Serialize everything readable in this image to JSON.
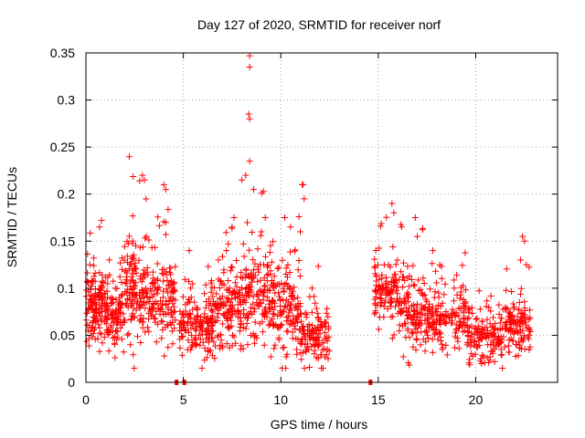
{
  "chart_data": {
    "type": "scatter",
    "title": "Day 127 of 2020, SRMTID for receiver norf",
    "xlabel": "GPS time / hours",
    "ylabel": "SRMTID / TECUs",
    "xlim": [
      0,
      24.2
    ],
    "ylim": [
      0,
      0.35
    ],
    "x_ticks": [
      0,
      5,
      10,
      15,
      20
    ],
    "x_tick_labels": [
      "0",
      "5",
      "10",
      "15",
      "20"
    ],
    "y_ticks": [
      0,
      0.05,
      0.1,
      0.15,
      0.2,
      0.25,
      0.3,
      0.35
    ],
    "y_tick_labels": [
      "0",
      "0.05",
      "0.1",
      "0.15",
      "0.2",
      "0.25",
      "0.3",
      "0.35"
    ],
    "grid": true,
    "marker": "+",
    "color": "#ff0000",
    "series": [
      {
        "name": "SRMTID",
        "clusters": [
          {
            "x_range": [
              0.0,
              1.0
            ],
            "center": 0.08,
            "spread": 0.018,
            "count": 130
          },
          {
            "x_range": [
              1.0,
              2.0
            ],
            "center": 0.07,
            "spread": 0.018,
            "count": 110
          },
          {
            "x_range": [
              2.0,
              3.2
            ],
            "center": 0.095,
            "spread": 0.025,
            "count": 140
          },
          {
            "x_range": [
              3.2,
              4.6
            ],
            "center": 0.085,
            "spread": 0.02,
            "count": 130
          },
          {
            "x_range": [
              4.8,
              6.5
            ],
            "center": 0.06,
            "spread": 0.015,
            "count": 150
          },
          {
            "x_range": [
              6.5,
              8.0
            ],
            "center": 0.075,
            "spread": 0.02,
            "count": 140
          },
          {
            "x_range": [
              8.0,
              9.6
            ],
            "center": 0.09,
            "spread": 0.025,
            "count": 150
          },
          {
            "x_range": [
              9.6,
              11.0
            ],
            "center": 0.07,
            "spread": 0.02,
            "count": 130
          },
          {
            "x_range": [
              11.0,
              12.5
            ],
            "center": 0.05,
            "spread": 0.015,
            "count": 120
          },
          {
            "x_range": [
              14.8,
              16.0
            ],
            "center": 0.095,
            "spread": 0.018,
            "count": 110
          },
          {
            "x_range": [
              16.0,
              17.5
            ],
            "center": 0.075,
            "spread": 0.018,
            "count": 130
          },
          {
            "x_range": [
              17.5,
              19.5
            ],
            "center": 0.065,
            "spread": 0.015,
            "count": 150
          },
          {
            "x_range": [
              19.5,
              21.5
            ],
            "center": 0.045,
            "spread": 0.013,
            "count": 150
          },
          {
            "x_range": [
              21.5,
              22.8
            ],
            "center": 0.06,
            "spread": 0.015,
            "count": 120
          }
        ],
        "spikes": [
          [
            0.2,
            0.125
          ],
          [
            0.7,
            0.165
          ],
          [
            0.8,
            0.172
          ],
          [
            1.2,
            0.13
          ],
          [
            2.4,
            0.15
          ],
          [
            2.9,
            0.22
          ],
          [
            3.0,
            0.215
          ],
          [
            3.1,
            0.155
          ],
          [
            4.0,
            0.21
          ],
          [
            4.1,
            0.205
          ],
          [
            4.0,
            0.12
          ],
          [
            4.1,
            0.17
          ],
          [
            5.3,
            0.14
          ],
          [
            6.8,
            0.13
          ],
          [
            7.5,
            0.165
          ],
          [
            7.6,
            0.175
          ],
          [
            8.0,
            0.215
          ],
          [
            8.2,
            0.22
          ],
          [
            8.4,
            0.235
          ],
          [
            8.35,
            0.285
          ],
          [
            8.4,
            0.28
          ],
          [
            8.4,
            0.335
          ],
          [
            8.4,
            0.347
          ],
          [
            8.6,
            0.205
          ],
          [
            9.0,
            0.16
          ],
          [
            9.2,
            0.175
          ],
          [
            10.2,
            0.175
          ],
          [
            10.5,
            0.165
          ],
          [
            11.1,
            0.21
          ],
          [
            11.15,
            0.21
          ],
          [
            11.2,
            0.195
          ],
          [
            11.0,
            0.16
          ],
          [
            15.7,
            0.19
          ],
          [
            15.8,
            0.18
          ],
          [
            16.2,
            0.165
          ],
          [
            16.9,
            0.175
          ],
          [
            17.0,
            0.155
          ],
          [
            17.8,
            0.14
          ],
          [
            22.4,
            0.155
          ],
          [
            22.5,
            0.15
          ],
          [
            22.3,
            0.13
          ],
          [
            22.6,
            0.125
          ]
        ],
        "gap_markers_x": [
          4.65,
          5.05,
          14.6
        ],
        "gap_markers_y": 0
      }
    ]
  }
}
